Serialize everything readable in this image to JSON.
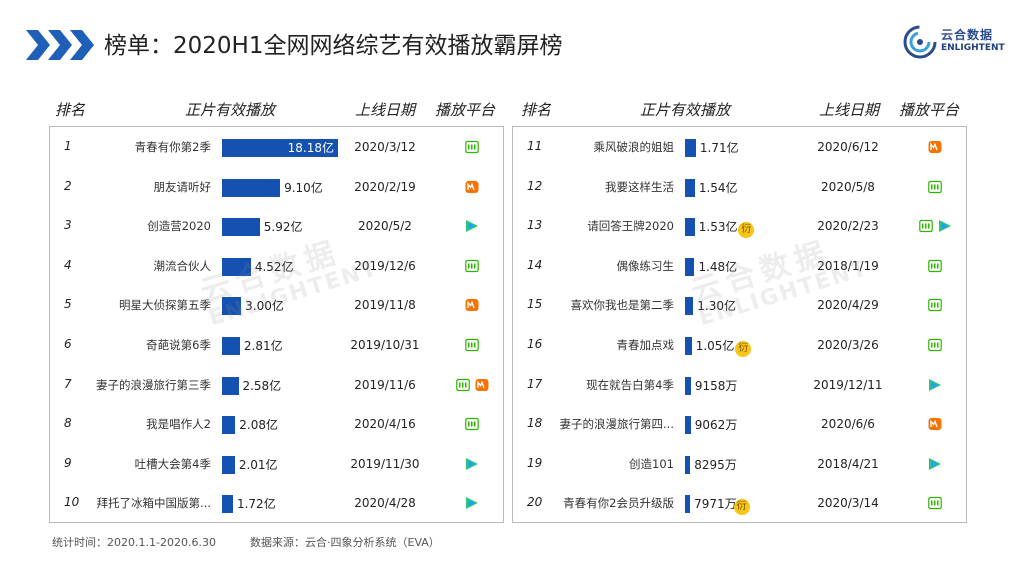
{
  "title": "榜单：2020H1全网网络综艺有效播放霸屏榜",
  "logo": {
    "cn": "云合数据",
    "en": "ENLIGHTENT"
  },
  "watermark": {
    "cn": "云合数据",
    "en": "ENLIGHTENT"
  },
  "headers": {
    "rank": "排名",
    "name": "正片有效播放",
    "date": "上线日期",
    "platform": "播放平台"
  },
  "footer": {
    "stat_time": "统计时间：2020.1.1-2020.6.30",
    "source": "数据来源：云合·四象分析系统（EVA）"
  },
  "colors": {
    "bar": "#1551b1",
    "iqiyi": "#2db400",
    "mango": "#f77200",
    "tencent_green": "#31c27c",
    "tencent_blue": "#1aa2ff",
    "tag": "#f5c518"
  },
  "chart_data": {
    "type": "bar",
    "title": "2020H1全网网络综艺有效播放霸屏榜",
    "unit": "亿",
    "columns": [
      "排名",
      "正片有效播放",
      "上线日期",
      "播放平台"
    ],
    "rows": [
      {
        "rank": "1",
        "name": "青春有你第2季",
        "value": 18.18,
        "label": "18.18亿",
        "date": "2020/3/12",
        "platforms": [
          "iqiyi"
        ],
        "tag": ""
      },
      {
        "rank": "2",
        "name": "朋友请听好",
        "value": 9.1,
        "label": "9.10亿",
        "date": "2020/2/19",
        "platforms": [
          "mango"
        ],
        "tag": ""
      },
      {
        "rank": "3",
        "name": "创造营2020",
        "value": 5.92,
        "label": "5.92亿",
        "date": "2020/5/2",
        "platforms": [
          "tencent"
        ],
        "tag": ""
      },
      {
        "rank": "4",
        "name": "潮流合伙人",
        "value": 4.52,
        "label": "4.52亿",
        "date": "2019/12/6",
        "platforms": [
          "iqiyi"
        ],
        "tag": ""
      },
      {
        "rank": "5",
        "name": "明星大侦探第五季",
        "value": 3.0,
        "label": "3.00亿",
        "date": "2019/11/8",
        "platforms": [
          "mango"
        ],
        "tag": ""
      },
      {
        "rank": "6",
        "name": "奇葩说第6季",
        "value": 2.81,
        "label": "2.81亿",
        "date": "2019/10/31",
        "platforms": [
          "iqiyi"
        ],
        "tag": ""
      },
      {
        "rank": "7",
        "name": "妻子的浪漫旅行第三季",
        "value": 2.58,
        "label": "2.58亿",
        "date": "2019/11/6",
        "platforms": [
          "iqiyi",
          "mango"
        ],
        "tag": ""
      },
      {
        "rank": "8",
        "name": "我是唱作人2",
        "value": 2.08,
        "label": "2.08亿",
        "date": "2020/4/16",
        "platforms": [
          "iqiyi"
        ],
        "tag": ""
      },
      {
        "rank": "9",
        "name": "吐槽大会第4季",
        "value": 2.01,
        "label": "2.01亿",
        "date": "2019/11/30",
        "platforms": [
          "tencent"
        ],
        "tag": ""
      },
      {
        "rank": "10",
        "name": "拜托了冰箱中国版第...",
        "value": 1.72,
        "label": "1.72亿",
        "date": "2020/4/28",
        "platforms": [
          "tencent"
        ],
        "tag": ""
      },
      {
        "rank": "11",
        "name": "乘风破浪的姐姐",
        "value": 1.71,
        "label": "1.71亿",
        "date": "2020/6/12",
        "platforms": [
          "mango"
        ],
        "tag": ""
      },
      {
        "rank": "12",
        "name": "我要这样生活",
        "value": 1.54,
        "label": "1.54亿",
        "date": "2020/5/8",
        "platforms": [
          "iqiyi"
        ],
        "tag": ""
      },
      {
        "rank": "13",
        "name": "请回答王牌2020",
        "value": 1.53,
        "label": "1.53亿",
        "date": "2020/2/23",
        "platforms": [
          "iqiyi",
          "tencent"
        ],
        "tag": "衍"
      },
      {
        "rank": "14",
        "name": "偶像练习生",
        "value": 1.48,
        "label": "1.48亿",
        "date": "2018/1/19",
        "platforms": [
          "iqiyi"
        ],
        "tag": ""
      },
      {
        "rank": "15",
        "name": "喜欢你我也是第二季",
        "value": 1.3,
        "label": "1.30亿",
        "date": "2020/4/29",
        "platforms": [
          "iqiyi"
        ],
        "tag": ""
      },
      {
        "rank": "16",
        "name": "青春加点戏",
        "value": 1.05,
        "label": "1.05亿",
        "date": "2020/3/26",
        "platforms": [
          "iqiyi"
        ],
        "tag": "衍"
      },
      {
        "rank": "17",
        "name": "现在就告白第4季",
        "value": 0.9158,
        "label": "9158万",
        "date": "2019/12/11",
        "platforms": [
          "tencent"
        ],
        "tag": ""
      },
      {
        "rank": "18",
        "name": "妻子的浪漫旅行第四...",
        "value": 0.9062,
        "label": "9062万",
        "date": "2020/6/6",
        "platforms": [
          "mango"
        ],
        "tag": ""
      },
      {
        "rank": "19",
        "name": "创造101",
        "value": 0.8295,
        "label": "8295万",
        "date": "2018/4/21",
        "platforms": [
          "tencent"
        ],
        "tag": ""
      },
      {
        "rank": "20",
        "name": "青春有你2会员升级版",
        "value": 0.7971,
        "label": "7971万",
        "date": "2020/3/14",
        "platforms": [
          "iqiyi"
        ],
        "tag": "衍"
      }
    ]
  }
}
